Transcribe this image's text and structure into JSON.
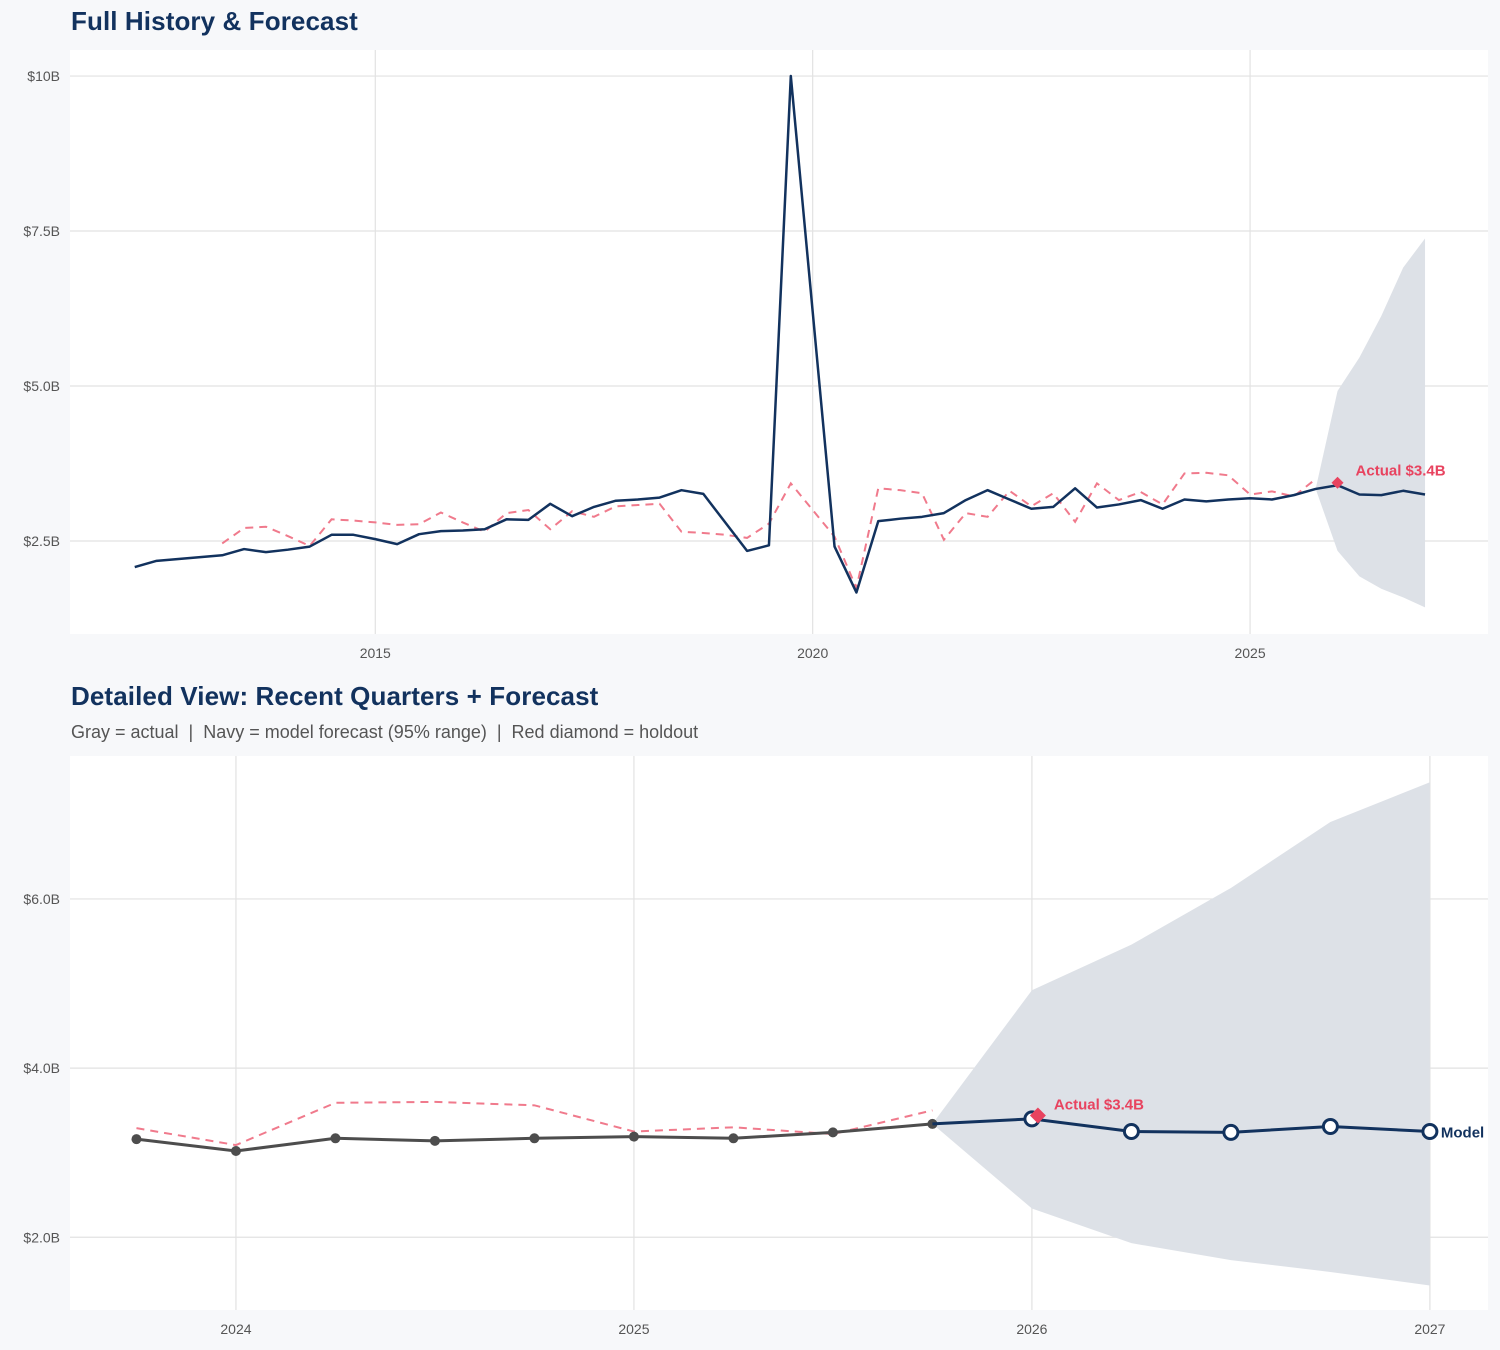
{
  "chart_data": [
    {
      "type": "line",
      "title": "Full History & Forecast",
      "xlim": [
        2011.51,
        2027.72
      ],
      "ylim": [
        1.0,
        10.42
      ],
      "x_ticks": [
        {
          "value": 2015,
          "label": "2015"
        },
        {
          "value": 2020,
          "label": "2020"
        },
        {
          "value": 2025,
          "label": "2025"
        }
      ],
      "y_ticks": [
        {
          "value": 2.5,
          "label": "$2.5B"
        },
        {
          "value": 5.0,
          "label": "$5.0B"
        },
        {
          "value": 7.5,
          "label": "$7.5B"
        },
        {
          "value": 10,
          "label": "$10B"
        }
      ],
      "grid": true,
      "units": "$B",
      "history": {
        "start": "2012Q1",
        "values": [
          2.08,
          2.18,
          2.21,
          2.24,
          2.27,
          2.37,
          2.32,
          2.36,
          2.41,
          2.6,
          2.6,
          2.53,
          2.45,
          2.61,
          2.66,
          2.67,
          2.69,
          2.85,
          2.84,
          3.1,
          2.9,
          3.05,
          3.15,
          3.17,
          3.2,
          3.32,
          3.26,
          2.8,
          2.34,
          2.43,
          10.0,
          6.2,
          2.41,
          1.67,
          2.82,
          2.86,
          2.89,
          2.95,
          3.16,
          3.32,
          3.17,
          3.02,
          3.05,
          3.35,
          3.04,
          3.09,
          3.16,
          3.02,
          3.17,
          3.14,
          3.17,
          3.19,
          3.17,
          3.24,
          3.34
        ],
        "color": "#12325e"
      },
      "dashed": {
        "start": "2013Q1",
        "values": [
          2.46,
          2.71,
          2.73,
          2.58,
          2.42,
          2.85,
          2.83,
          2.8,
          2.76,
          2.77,
          2.96,
          2.8,
          2.65,
          2.95,
          3.0,
          2.69,
          2.98,
          2.89,
          3.06,
          3.08,
          3.1,
          2.65,
          2.63,
          2.6,
          2.55,
          2.78,
          3.43,
          3.0,
          2.57,
          1.74,
          3.35,
          3.32,
          3.27,
          2.52,
          2.95,
          2.89,
          3.31,
          3.06,
          3.27,
          2.81,
          3.43,
          3.16,
          3.29,
          3.09,
          3.59,
          3.6,
          3.56,
          3.25,
          3.3,
          3.22,
          3.5
        ],
        "color": "#f07a8c"
      },
      "forecast": {
        "start": "2025Q4",
        "values": [
          3.4,
          3.25,
          3.24,
          3.31,
          3.25
        ],
        "color": "#12325e"
      },
      "band": {
        "start": "2025Q3",
        "lower": [
          3.34,
          2.34,
          1.93,
          1.73,
          1.59,
          1.43
        ],
        "upper": [
          3.34,
          4.92,
          5.46,
          6.13,
          6.91,
          7.38
        ],
        "color": "#dde1e7"
      },
      "holdout": {
        "quarter": "2025Q4",
        "value": 3.44,
        "label": "Actual $3.4B",
        "color": "#e8435f"
      }
    },
    {
      "type": "line",
      "title": "Detailed View: Recent Quarters + Forecast",
      "subtitle": "Gray = actual  |  Navy = model forecast (95% range)  |  Red diamond = holdout",
      "xlim": [
        2023.583,
        2027.146
      ],
      "ylim": [
        1.14,
        7.69
      ],
      "x_ticks": [
        {
          "value": 2024,
          "label": "2024"
        },
        {
          "value": 2025,
          "label": "2025"
        },
        {
          "value": 2026,
          "label": "2026"
        },
        {
          "value": 2027,
          "label": "2027"
        }
      ],
      "y_ticks": [
        {
          "value": 2.0,
          "label": "$2.0B"
        },
        {
          "value": 4.0,
          "label": "$4.0B"
        },
        {
          "value": 6.0,
          "label": "$6.0B"
        }
      ],
      "grid": true,
      "units": "$B",
      "history": {
        "start": "2023Q3",
        "values": [
          3.16,
          3.02,
          3.17,
          3.14,
          3.17,
          3.19,
          3.17,
          3.24,
          3.34
        ],
        "color": "#4d4d4d"
      },
      "dashed": {
        "start": "2023Q3",
        "values": [
          3.29,
          3.09,
          3.59,
          3.6,
          3.56,
          3.25,
          3.3,
          3.22,
          3.5
        ],
        "color": "#f07a8c"
      },
      "forecast": {
        "start": "2025Q4",
        "values": [
          3.4,
          3.25,
          3.24,
          3.31,
          3.25
        ],
        "color": "#12325e",
        "label": "Model"
      },
      "band": {
        "start": "2025Q3",
        "lower": [
          3.34,
          2.34,
          1.93,
          1.73,
          1.59,
          1.43
        ],
        "upper": [
          3.34,
          4.92,
          5.46,
          6.13,
          6.91,
          7.38
        ],
        "color": "#dde1e7"
      },
      "holdout": {
        "quarter": "2025Q4",
        "value": 3.44,
        "label": "Actual $3.4B",
        "color": "#e8435f"
      }
    }
  ]
}
